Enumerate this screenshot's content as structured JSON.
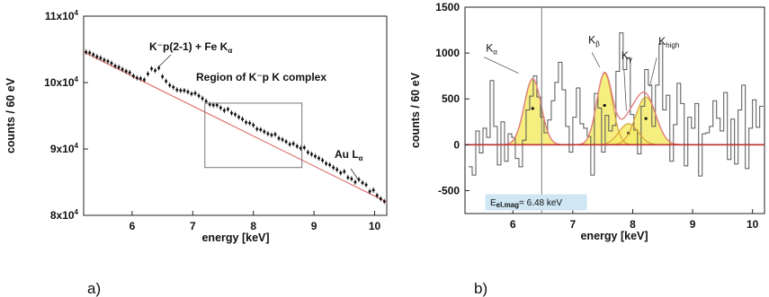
{
  "chart_data": [
    {
      "id": "a",
      "panel_label": "a)",
      "type": "scatter",
      "xlabel": "energy  [keV]",
      "ylabel": "counts / 60 eV",
      "xlim": [
        5.2,
        10.2
      ],
      "ylim": [
        80000,
        110000
      ],
      "xticks": [
        6,
        7,
        8,
        9,
        10
      ],
      "xtick_labels": [
        "6",
        "7",
        "8",
        "9",
        "10"
      ],
      "yticks": [
        80000,
        90000,
        100000,
        110000
      ],
      "ytick_labels": [
        {
          "mant": "8x10",
          "exp": "4"
        },
        {
          "mant": "9x10",
          "exp": "4"
        },
        {
          "mant": "10x10",
          "exp": "4"
        },
        {
          "mant": "11x10",
          "exp": "4"
        }
      ],
      "background_fit": {
        "x": [
          5.2,
          10.2
        ],
        "y": [
          104600,
          82000
        ]
      },
      "series": [
        {
          "x": [
            5.24,
            5.3,
            5.36,
            5.42,
            5.48,
            5.54,
            5.6,
            5.66,
            5.72,
            5.78,
            5.84,
            5.9,
            5.96,
            6.02,
            6.08,
            6.14,
            6.2,
            6.26,
            6.32,
            6.38,
            6.44,
            6.5,
            6.56,
            6.62,
            6.68,
            6.74,
            6.8,
            6.86,
            6.92,
            6.98,
            7.04,
            7.1,
            7.16,
            7.22,
            7.28,
            7.34,
            7.4,
            7.46,
            7.52,
            7.58,
            7.64,
            7.7,
            7.76,
            7.82,
            7.88,
            7.94,
            8.0,
            8.06,
            8.12,
            8.18,
            8.24,
            8.3,
            8.36,
            8.42,
            8.48,
            8.54,
            8.6,
            8.66,
            8.72,
            8.78,
            8.84,
            8.9,
            8.96,
            9.02,
            9.08,
            9.14,
            9.2,
            9.26,
            9.32,
            9.38,
            9.44,
            9.5,
            9.56,
            9.62,
            9.68,
            9.74,
            9.8,
            9.86,
            9.92,
            9.98,
            10.04,
            10.1,
            10.16
          ],
          "y": [
            104600,
            104500,
            104200,
            103900,
            103700,
            103400,
            103200,
            102900,
            102500,
            102300,
            102000,
            101700,
            101500,
            101000,
            100700,
            100600,
            100400,
            101300,
            102100,
            101800,
            102200,
            100900,
            100200,
            99600,
            99300,
            98900,
            98800,
            98800,
            98600,
            98300,
            98400,
            98000,
            97600,
            97200,
            96700,
            96600,
            96600,
            96200,
            95800,
            96000,
            95400,
            95200,
            94800,
            94500,
            94000,
            93900,
            93600,
            93000,
            92900,
            92600,
            92300,
            92100,
            92200,
            91600,
            91400,
            91100,
            90700,
            90800,
            90400,
            90100,
            90200,
            89500,
            89200,
            88900,
            88600,
            88300,
            87800,
            87600,
            87200,
            86900,
            86400,
            86600,
            85700,
            85500,
            85000,
            85400,
            84900,
            84600,
            83600,
            83800,
            83000,
            82500,
            82100
          ]
        }
      ],
      "annotations": [
        {
          "text": "K⁻p(2-1) + Fe K",
          "sub": "α"
        },
        {
          "text": "Region of K⁻p K complex"
        },
        {
          "text": "Au L",
          "sub": "α"
        }
      ],
      "region_box": {
        "x": [
          7.2,
          8.8
        ],
        "y": [
          87200,
          96900
        ]
      }
    },
    {
      "id": "b",
      "panel_label": "b)",
      "type": "bar",
      "xlabel": "energy  [keV]",
      "ylabel": "counts / 60 eV",
      "xlim": [
        5.2,
        10.2
      ],
      "ylim": [
        -750,
        1500
      ],
      "xticks": [
        6,
        7,
        8,
        9,
        10
      ],
      "xtick_labels": [
        "6",
        "7",
        "8",
        "9",
        "10"
      ],
      "yticks": [
        -500,
        0,
        500,
        1000,
        1500
      ],
      "ytick_labels": [
        "-500",
        "0",
        "500",
        "1000",
        "1500"
      ],
      "vline_x": 6.48,
      "bin_width": 0.06,
      "bin_edges_start": 5.26,
      "histogram": [
        -240,
        -330,
        150,
        -90,
        180,
        80,
        700,
        200,
        -220,
        250,
        -180,
        120,
        80,
        -150,
        -240,
        50,
        380,
        530,
        750,
        520,
        300,
        130,
        270,
        480,
        680,
        900,
        600,
        200,
        -80,
        300,
        620,
        230,
        180,
        90,
        -330,
        560,
        400,
        -80,
        320,
        150,
        210,
        800,
        1220,
        820,
        950,
        330,
        160,
        -100,
        420,
        820,
        650,
        200,
        650,
        1100,
        380,
        540,
        -180,
        220,
        670,
        450,
        -230,
        300,
        180,
        450,
        -340,
        120,
        130,
        200,
        480,
        290,
        150,
        570,
        -160,
        280,
        -210,
        380,
        650,
        -260,
        180,
        490,
        190,
        420
      ],
      "peaks": [
        {
          "label": "K",
          "sub": "α",
          "center": 6.33,
          "amplitude": 720,
          "sigma": 0.14
        },
        {
          "label": "K",
          "sub": "β",
          "center": 7.53,
          "amplitude": 780,
          "sigma": 0.13
        },
        {
          "label": "K",
          "sub": "γ",
          "center": 7.93,
          "amplitude": 230,
          "sigma": 0.16
        },
        {
          "label": "K",
          "sub": "high",
          "center": 8.22,
          "amplitude": 520,
          "sigma": 0.17
        }
      ],
      "box_label": {
        "text": "E",
        "sub": "el.mag",
        "rest": "= 6.48 keV"
      }
    }
  ]
}
